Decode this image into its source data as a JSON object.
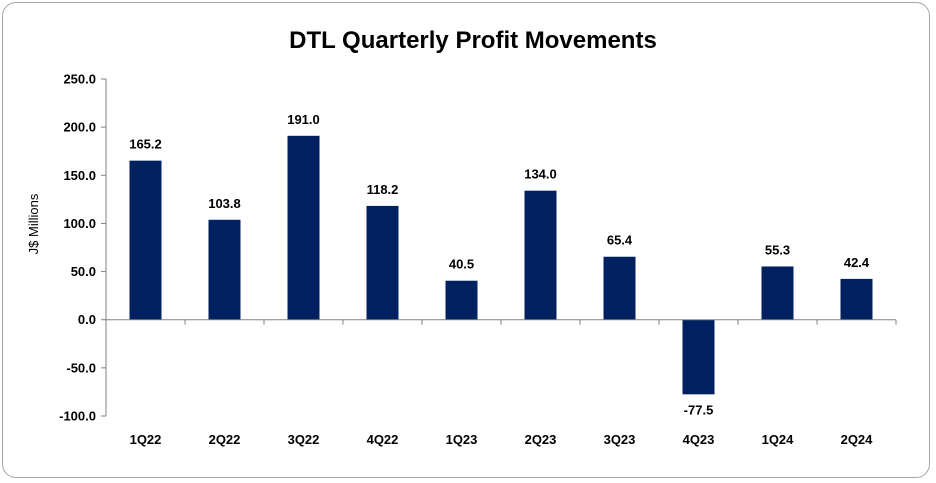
{
  "chart_data": {
    "type": "bar",
    "title": "DTL Quarterly Profit Movements",
    "xlabel": "",
    "ylabel": "J$ Millions",
    "categories": [
      "1Q22",
      "2Q22",
      "3Q22",
      "4Q22",
      "1Q23",
      "2Q23",
      "3Q23",
      "4Q23",
      "1Q24",
      "2Q24"
    ],
    "values": [
      165.2,
      103.8,
      191.0,
      118.2,
      40.5,
      134.0,
      65.4,
      -77.5,
      55.3,
      42.4
    ],
    "value_labels": [
      "165.2",
      "103.8",
      "191.0",
      "118.2",
      "40.5",
      "134.0",
      "65.4",
      "-77.5",
      "55.3",
      "42.4"
    ],
    "ylim": [
      -100,
      250
    ],
    "yticks": [
      -100,
      -50,
      0,
      50,
      100,
      150,
      200,
      250
    ],
    "ytick_labels": [
      "-100.0",
      "-50.0",
      "0.0",
      "50.0",
      "100.0",
      "150.0",
      "200.0",
      "250.0"
    ],
    "bar_color": "#002060",
    "grid": false,
    "legend": "none"
  }
}
